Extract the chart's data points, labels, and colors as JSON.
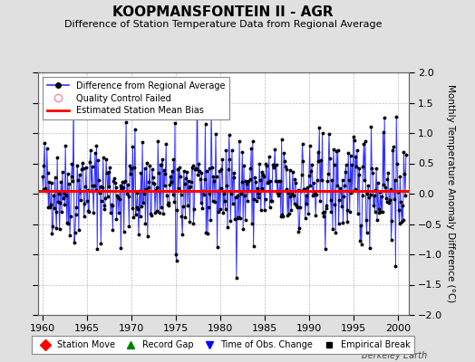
{
  "title": "KOOPMANSFONTEIN II - AGR",
  "subtitle": "Difference of Station Temperature Data from Regional Average",
  "ylabel": "Monthly Temperature Anomaly Difference (°C)",
  "xlim": [
    1959.5,
    2001.2
  ],
  "ylim": [
    -2,
    2
  ],
  "yticks": [
    -2,
    -1.5,
    -1,
    -0.5,
    0,
    0.5,
    1,
    1.5,
    2
  ],
  "xticks": [
    1960,
    1965,
    1970,
    1975,
    1980,
    1985,
    1990,
    1995,
    2000
  ],
  "bias_value": 0.04,
  "line_color": "#3333FF",
  "marker_color": "#000000",
  "bias_color": "#FF0000",
  "bg_color": "#E0E0E0",
  "plot_bg_color": "#FFFFFF",
  "grid_color": "#BBBBBB",
  "watermark": "Berkeley Earth",
  "seed": 42
}
